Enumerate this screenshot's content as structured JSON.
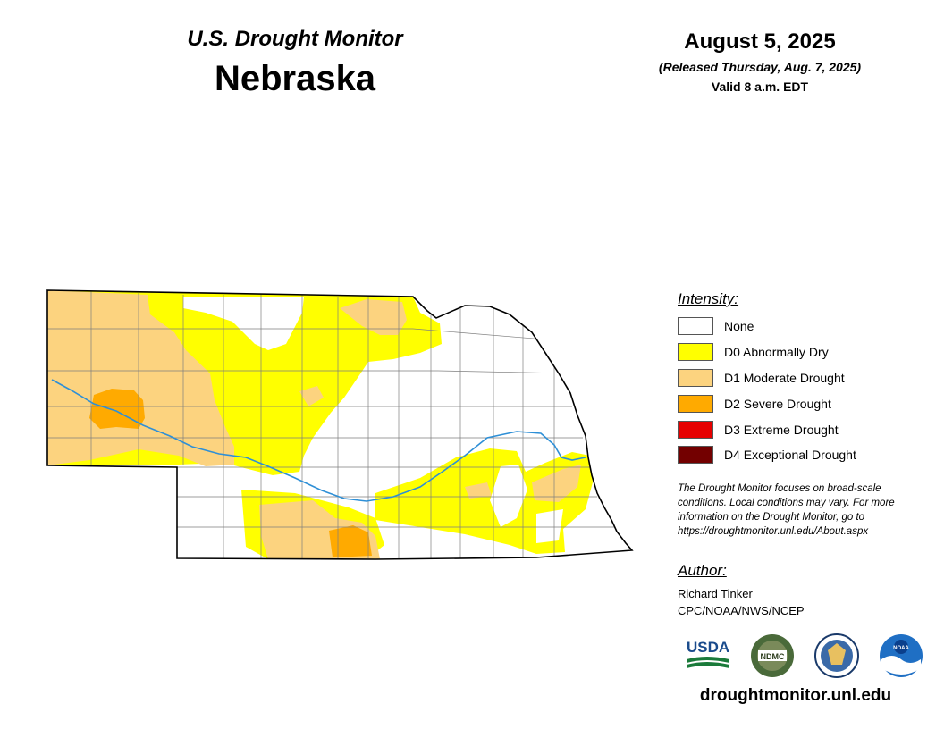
{
  "header": {
    "product": "U.S. Drought Monitor",
    "state": "Nebraska",
    "date": "August 5, 2025",
    "released": "(Released Thursday, Aug. 7, 2025)",
    "valid": "Valid 8 a.m. EDT"
  },
  "legend": {
    "title": "Intensity:",
    "items": [
      {
        "label": "None",
        "color": "#ffffff"
      },
      {
        "label": "D0 Abnormally Dry",
        "color": "#ffff00"
      },
      {
        "label": "D1 Moderate Drought",
        "color": "#fcd37f"
      },
      {
        "label": "D2 Severe Drought",
        "color": "#ffaa00"
      },
      {
        "label": "D3 Extreme Drought",
        "color": "#e60000"
      },
      {
        "label": "D4 Exceptional Drought",
        "color": "#730000"
      }
    ]
  },
  "note": "The Drought Monitor focuses on broad-scale conditions. Local conditions may vary. For more information on the Drought Monitor, go to https://droughtmonitor.unl.edu/About.aspx",
  "author": {
    "title": "Author:",
    "name": "Richard Tinker",
    "org": "CPC/NOAA/NWS/NCEP"
  },
  "logos": {
    "usda": "USDA",
    "ndmc": "NDMC",
    "noaa": "NOAA",
    "icons": [
      "usda-logo",
      "ndmc-logo",
      "doc-seal-logo",
      "noaa-logo"
    ]
  },
  "website": "droughtmonitor.unl.edu",
  "colors": {
    "river": "#2e8fd6",
    "county_line": "#7f7f7f",
    "state_border": "#000000"
  }
}
